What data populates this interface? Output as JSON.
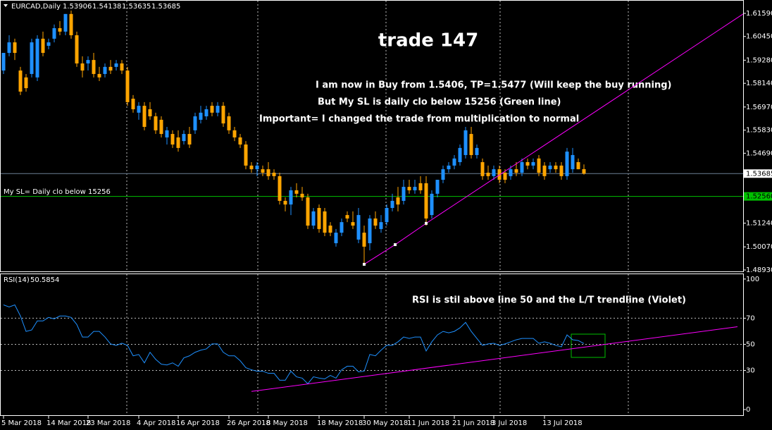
{
  "chart_data": {
    "type": "candlestick",
    "symbol": "EURCAD,Daily",
    "title": "trade 147",
    "annotations": [
      "I am now in Buy from 1.5406, TP=1.5477  (Will keep the buy running)",
      "But My SL is daily clo below 15256 (Green line)",
      "Important= I changed the trade from multiplication  to normal"
    ],
    "sl_label": "My SL= Daily clo below 15256",
    "rsi_annotation": "RSI is stil above line 50 and the L/T trendline (Violet)",
    "up_color": "#1e90ff",
    "down_color": "#ffa500",
    "categories": [
      "5 Mar 2018",
      null,
      null,
      null,
      null,
      null,
      null,
      null,
      "14 Mar 2018",
      null,
      null,
      null,
      null,
      null,
      null,
      "23 Mar 2018",
      null,
      null,
      null,
      null,
      null,
      null,
      null,
      null,
      "4 Apr 2018",
      null,
      null,
      null,
      null,
      null,
      null,
      "16 Apr 2018",
      null,
      null,
      null,
      null,
      null,
      null,
      null,
      null,
      "26 Apr 2018",
      null,
      null,
      null,
      null,
      null,
      null,
      "8 May 2018",
      null,
      null,
      null,
      null,
      null,
      null,
      null,
      null,
      "18 May 2018",
      null,
      null,
      null,
      null,
      null,
      null,
      null,
      "30 May 2018",
      null,
      null,
      null,
      null,
      null,
      null,
      null,
      "11 Jun 2018",
      null,
      null,
      null,
      null,
      null,
      null,
      null,
      "21 Jun 2018",
      null,
      null,
      null,
      null,
      null,
      null,
      "3 Jul 2018",
      null,
      null,
      null,
      null,
      null,
      null,
      null,
      null,
      "13 Jul 2018",
      null,
      null,
      null,
      null,
      null,
      null,
      null
    ],
    "candles": [
      [
        1.5877,
        1.5964,
        1.586,
        1.5964
      ],
      [
        1.5964,
        1.6051,
        1.5947,
        1.6016
      ],
      [
        1.6016,
        1.6034,
        1.5929,
        1.5964
      ],
      [
        1.5877,
        1.5895,
        1.5756,
        1.5773
      ],
      [
        1.5843,
        1.586,
        1.5773,
        1.579
      ],
      [
        1.586,
        1.6034,
        1.5843,
        1.6016
      ],
      [
        1.5843,
        1.6051,
        1.5825,
        1.6034
      ],
      [
        1.6034,
        1.6069,
        1.5947,
        1.5964
      ],
      [
        1.5999,
        1.6034,
        1.5982,
        1.6016
      ],
      [
        1.6034,
        1.6104,
        1.6016,
        1.6086
      ],
      [
        1.6086,
        1.6121,
        1.6051,
        1.6069
      ],
      [
        1.6069,
        1.6156,
        1.6051,
        1.6156
      ],
      [
        1.6156,
        1.6173,
        1.6034,
        1.6051
      ],
      [
        1.6051,
        1.6069,
        1.5895,
        1.5912
      ],
      [
        1.5912,
        1.5947,
        1.5843,
        1.5877
      ],
      [
        1.5912,
        1.5947,
        1.5877,
        1.5929
      ],
      [
        1.5929,
        1.5964,
        1.5843,
        1.586
      ],
      [
        1.586,
        1.5895,
        1.5825,
        1.5843
      ],
      [
        1.586,
        1.5912,
        1.5843,
        1.5895
      ],
      [
        1.5895,
        1.5929,
        1.586,
        1.5877
      ],
      [
        1.5895,
        1.5929,
        1.5877,
        1.5912
      ],
      [
        1.5912,
        1.5929,
        1.586,
        1.5877
      ],
      [
        1.5877,
        1.5895,
        1.5703,
        1.5721
      ],
      [
        1.5738,
        1.5756,
        1.5669,
        1.5686
      ],
      [
        1.5669,
        1.5721,
        1.5634,
        1.5703
      ],
      [
        1.5703,
        1.5721,
        1.5582,
        1.5599
      ],
      [
        1.5686,
        1.5721,
        1.5634,
        1.5651
      ],
      [
        1.5651,
        1.5669,
        1.5564,
        1.5582
      ],
      [
        1.5634,
        1.5651,
        1.5547,
        1.5564
      ],
      [
        1.5547,
        1.5599,
        1.5512,
        1.5582
      ],
      [
        1.5564,
        1.5582,
        1.5495,
        1.5512
      ],
      [
        1.5547,
        1.5582,
        1.5477,
        1.5495
      ],
      [
        1.5529,
        1.5582,
        1.5512,
        1.5564
      ],
      [
        1.5564,
        1.5599,
        1.5495,
        1.5512
      ],
      [
        1.5582,
        1.5669,
        1.5564,
        1.5651
      ],
      [
        1.5634,
        1.5703,
        1.5616,
        1.5669
      ],
      [
        1.5651,
        1.5703,
        1.5634,
        1.5686
      ],
      [
        1.5703,
        1.5721,
        1.5651,
        1.5669
      ],
      [
        1.5669,
        1.5721,
        1.5651,
        1.5703
      ],
      [
        1.5703,
        1.5721,
        1.5599,
        1.5616
      ],
      [
        1.5651,
        1.5669,
        1.5564,
        1.5582
      ],
      [
        1.5582,
        1.5599,
        1.5529,
        1.5547
      ],
      [
        1.5547,
        1.5564,
        1.5495,
        1.5512
      ],
      [
        1.5512,
        1.5529,
        1.539,
        1.5408
      ],
      [
        1.5408,
        1.5425,
        1.5373,
        1.539
      ],
      [
        1.539,
        1.5425,
        1.5356,
        1.5408
      ],
      [
        1.539,
        1.5408,
        1.5356,
        1.5373
      ],
      [
        1.539,
        1.5425,
        1.5338,
        1.5356
      ],
      [
        1.5373,
        1.539,
        1.5338,
        1.5356
      ],
      [
        1.5356,
        1.5373,
        1.5216,
        1.5234
      ],
      [
        1.5234,
        1.5251,
        1.5182,
        1.5216
      ],
      [
        1.5216,
        1.5303,
        1.5164,
        1.5286
      ],
      [
        1.5286,
        1.5321,
        1.5251,
        1.5269
      ],
      [
        1.5269,
        1.5303,
        1.5234,
        1.5251
      ],
      [
        1.5251,
        1.5269,
        1.5095,
        1.5112
      ],
      [
        1.5112,
        1.5199,
        1.5095,
        1.5182
      ],
      [
        1.5199,
        1.5216,
        1.5077,
        1.5095
      ],
      [
        1.5182,
        1.5199,
        1.506,
        1.5077
      ],
      [
        1.5112,
        1.5129,
        1.506,
        1.5077
      ],
      [
        1.5025,
        1.5095,
        1.5008,
        1.5077
      ],
      [
        1.5077,
        1.5147,
        1.506,
        1.5129
      ],
      [
        1.5164,
        1.5182,
        1.5129,
        1.5147
      ],
      [
        1.5129,
        1.5182,
        1.5095,
        1.5112
      ],
      [
        1.5043,
        1.5199,
        1.5025,
        1.5164
      ],
      [
        1.5077,
        1.5112,
        1.4921,
        1.5008
      ],
      [
        1.5025,
        1.5164,
        1.499,
        1.5147
      ],
      [
        1.5147,
        1.5182,
        1.5095,
        1.5112
      ],
      [
        1.5095,
        1.5164,
        1.5077,
        1.5129
      ],
      [
        1.5129,
        1.5216,
        1.5112,
        1.5199
      ],
      [
        1.5199,
        1.5269,
        1.5182,
        1.5234
      ],
      [
        1.5251,
        1.5303,
        1.5182,
        1.5216
      ],
      [
        1.5234,
        1.5338,
        1.5216,
        1.5303
      ],
      [
        1.5303,
        1.5338,
        1.5269,
        1.5286
      ],
      [
        1.5286,
        1.5338,
        1.5269,
        1.5303
      ],
      [
        1.5321,
        1.5356,
        1.5269,
        1.5286
      ],
      [
        1.5321,
        1.5356,
        1.5112,
        1.5147
      ],
      [
        1.5164,
        1.5286,
        1.5147,
        1.5269
      ],
      [
        1.5269,
        1.5338,
        1.5251,
        1.5338
      ],
      [
        1.5338,
        1.5408,
        1.5321,
        1.539
      ],
      [
        1.539,
        1.5425,
        1.5373,
        1.5408
      ],
      [
        1.5408,
        1.546,
        1.539,
        1.5443
      ],
      [
        1.5425,
        1.5512,
        1.5408,
        1.5495
      ],
      [
        1.546,
        1.5599,
        1.5443,
        1.5582
      ],
      [
        1.5564,
        1.5599,
        1.5443,
        1.546
      ],
      [
        1.546,
        1.5512,
        1.5443,
        1.5495
      ],
      [
        1.5425,
        1.5443,
        1.5338,
        1.5356
      ],
      [
        1.5373,
        1.5408,
        1.5338,
        1.5356
      ],
      [
        1.5356,
        1.5408,
        1.5338,
        1.539
      ],
      [
        1.539,
        1.5408,
        1.5321,
        1.5338
      ],
      [
        1.5373,
        1.539,
        1.5321,
        1.5338
      ],
      [
        1.5356,
        1.5408,
        1.5338,
        1.539
      ],
      [
        1.539,
        1.5425,
        1.5356,
        1.5373
      ],
      [
        1.5373,
        1.5443,
        1.5356,
        1.5425
      ],
      [
        1.5425,
        1.5443,
        1.539,
        1.5408
      ],
      [
        1.5408,
        1.5443,
        1.539,
        1.5425
      ],
      [
        1.5443,
        1.546,
        1.5356,
        1.5373
      ],
      [
        1.5408,
        1.5425,
        1.5338,
        1.5356
      ],
      [
        1.539,
        1.5425,
        1.5373,
        1.5408
      ],
      [
        1.5408,
        1.5425,
        1.5373,
        1.539
      ],
      [
        1.5408,
        1.5425,
        1.5338,
        1.5356
      ],
      [
        1.5356,
        1.5495,
        1.5338,
        1.5477
      ],
      [
        1.539,
        1.5495,
        1.5373,
        1.546
      ],
      [
        1.5425,
        1.5443,
        1.539,
        1.539
      ],
      [
        1.53906,
        1.54138,
        1.53635,
        1.53685
      ]
    ],
    "ylim": [
      1.4886,
      1.6218
    ],
    "yticks": [
      {
        "value": 1.6159,
        "label": "1.61590"
      },
      {
        "value": 1.6045,
        "label": "1.60450"
      },
      {
        "value": 1.5928,
        "label": "1.59280"
      },
      {
        "value": 1.5814,
        "label": "1.58140"
      },
      {
        "value": 1.5697,
        "label": "1.56970"
      },
      {
        "value": 1.5583,
        "label": "1.55830"
      },
      {
        "value": 1.5469,
        "label": "1.54690"
      },
      {
        "value": 1.5124,
        "label": "1.51240"
      },
      {
        "value": 1.5007,
        "label": "1.50070"
      },
      {
        "value": 1.4893,
        "label": "1.48930"
      }
    ],
    "price_line_color": "#6c7f94",
    "sl_line": {
      "value": 1.5256,
      "label": "1.52560",
      "color": "#00c000"
    },
    "trendline": {
      "color": "#ff00ff",
      "x": [
        64,
        69.5,
        75
      ],
      "values": [
        1.4921,
        1.5018,
        1.5123
      ]
    },
    "rsi": {
      "name": "RSI(14)",
      "color": "#1e90ff",
      "values": [
        80.2,
        78.6,
        80.2,
        71.7,
        59.9,
        61.0,
        67.9,
        67.9,
        70.6,
        69.5,
        71.7,
        71.7,
        70.6,
        65.2,
        55.6,
        55.6,
        59.9,
        59.9,
        55.6,
        50.3,
        49.2,
        50.8,
        49.2,
        41.2,
        42.2,
        35.8,
        43.9,
        38.5,
        34.8,
        34.2,
        35.8,
        33.2,
        39.6,
        41.2,
        43.9,
        45.5,
        46.5,
        50.3,
        50.3,
        43.9,
        41.2,
        41.2,
        37.4,
        32.1,
        30.5,
        29.4,
        29.4,
        27.8,
        27.8,
        22.5,
        22.5,
        29.4,
        25.1,
        24.1,
        19.8,
        25.1,
        24.1,
        23.5,
        26.2,
        24.1,
        30.5,
        33.2,
        33.2,
        28.9,
        29.4,
        42.2,
        41.2,
        45.5,
        49.2,
        49.2,
        51.9,
        55.6,
        54.5,
        55.6,
        55.6,
        44.9,
        51.9,
        57.2,
        59.9,
        58.8,
        59.9,
        62.6,
        66.8,
        59.9,
        54.5,
        49.2,
        50.3,
        50.8,
        49.2,
        50.3,
        51.9,
        53.5,
        54.5,
        54.5,
        54.5,
        50.8,
        51.9,
        50.8,
        49.2,
        48.1,
        57.2,
        53.5,
        52.9,
        50.5854
      ],
      "ylim": [
        -4.3,
        103.7
      ],
      "yticks": [
        0,
        30,
        50,
        70,
        100
      ],
      "levels": [
        30,
        50,
        70
      ],
      "trendline": {
        "color": "#ff00ff",
        "x": [
          44,
          103
        ],
        "values": [
          13.9,
          47.8
        ]
      }
    }
  }
}
